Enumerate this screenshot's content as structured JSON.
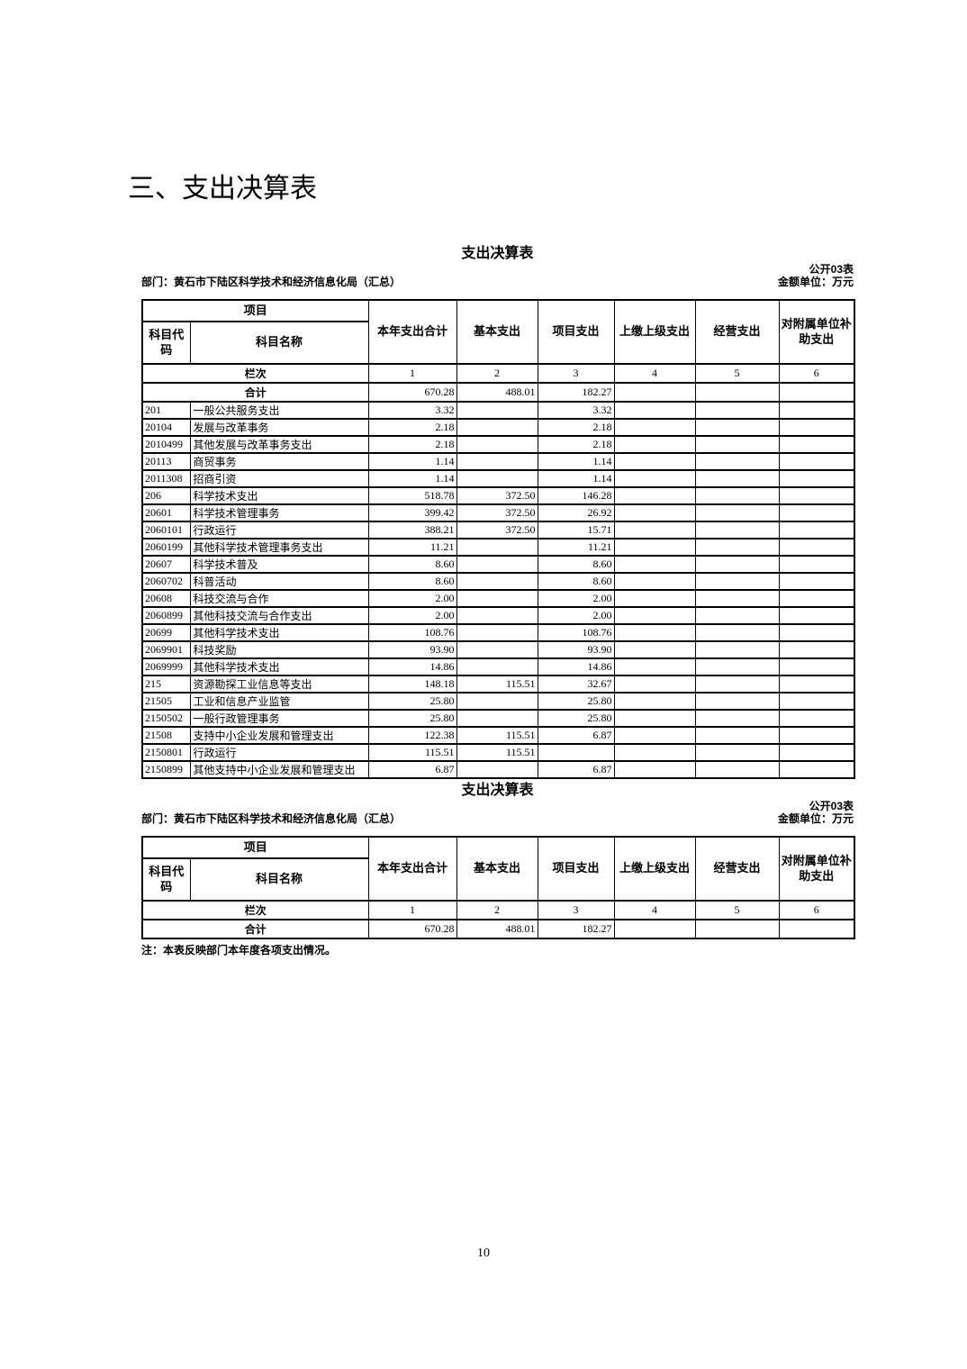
{
  "palette": {
    "text": "#000000",
    "background": "#ffffff",
    "border": "#000000"
  },
  "page": {
    "heading": "三、支出决算表",
    "page_number": "10"
  },
  "tables": [
    {
      "title": "支出决算表",
      "form_code": "公开03表",
      "unit_label": "金额单位：万元",
      "department": "部门：黄石市下陆区科学技术和经济信息化局（汇总）",
      "header": {
        "group_label": "项目",
        "code_label": "科目代码",
        "name_label": "科目名称",
        "amount_columns": [
          "本年支出合计",
          "基本支出",
          "项目支出",
          "上缴上级支出",
          "经营支出",
          "对附属单位补助支出"
        ]
      },
      "column_index_row": {
        "label": "栏次",
        "numbers": [
          "1",
          "2",
          "3",
          "4",
          "5",
          "6"
        ]
      },
      "total_row": {
        "label": "合计",
        "values": [
          "670.28",
          "488.01",
          "182.27",
          "",
          "",
          ""
        ]
      },
      "data_rows": [
        [
          "201",
          "一般公共服务支出",
          "3.32",
          "",
          "3.32",
          "",
          "",
          ""
        ],
        [
          "20104",
          "发展与改革事务",
          "2.18",
          "",
          "2.18",
          "",
          "",
          ""
        ],
        [
          "2010499",
          "其他发展与改革事务支出",
          "2.18",
          "",
          "2.18",
          "",
          "",
          ""
        ],
        [
          "20113",
          "商贸事务",
          "1.14",
          "",
          "1.14",
          "",
          "",
          ""
        ],
        [
          "2011308",
          "招商引资",
          "1.14",
          "",
          "1.14",
          "",
          "",
          ""
        ],
        [
          "206",
          "科学技术支出",
          "518.78",
          "372.50",
          "146.28",
          "",
          "",
          ""
        ],
        [
          "20601",
          "科学技术管理事务",
          "399.42",
          "372.50",
          "26.92",
          "",
          "",
          ""
        ],
        [
          "2060101",
          "行政运行",
          "388.21",
          "372.50",
          "15.71",
          "",
          "",
          ""
        ],
        [
          "2060199",
          "其他科学技术管理事务支出",
          "11.21",
          "",
          "11.21",
          "",
          "",
          ""
        ],
        [
          "20607",
          "科学技术普及",
          "8.60",
          "",
          "8.60",
          "",
          "",
          ""
        ],
        [
          "2060702",
          "科普活动",
          "8.60",
          "",
          "8.60",
          "",
          "",
          ""
        ],
        [
          "20608",
          "科技交流与合作",
          "2.00",
          "",
          "2.00",
          "",
          "",
          ""
        ],
        [
          "2060899",
          "其他科技交流与合作支出",
          "2.00",
          "",
          "2.00",
          "",
          "",
          ""
        ],
        [
          "20699",
          "其他科学技术支出",
          "108.76",
          "",
          "108.76",
          "",
          "",
          ""
        ],
        [
          "2069901",
          "科技奖励",
          "93.90",
          "",
          "93.90",
          "",
          "",
          ""
        ],
        [
          "2069999",
          "其他科学技术支出",
          "14.86",
          "",
          "14.86",
          "",
          "",
          ""
        ],
        [
          "215",
          "资源勘探工业信息等支出",
          "148.18",
          "115.51",
          "32.67",
          "",
          "",
          ""
        ],
        [
          "21505",
          "工业和信息产业监管",
          "25.80",
          "",
          "25.80",
          "",
          "",
          ""
        ],
        [
          "2150502",
          "一般行政管理事务",
          "25.80",
          "",
          "25.80",
          "",
          "",
          ""
        ],
        [
          "21508",
          "支持中小企业发展和管理支出",
          "122.38",
          "115.51",
          "6.87",
          "",
          "",
          ""
        ],
        [
          "2150801",
          "行政运行",
          "115.51",
          "115.51",
          "",
          "",
          "",
          ""
        ],
        [
          "2150899",
          "其他支持中小企业发展和管理支出",
          "6.87",
          "",
          "6.87",
          "",
          "",
          ""
        ]
      ],
      "note": ""
    },
    {
      "title": "支出决算表",
      "form_code": "公开03表",
      "unit_label": "金额单位：万元",
      "department": "部门：黄石市下陆区科学技术和经济信息化局（汇总）",
      "header": {
        "group_label": "项目",
        "code_label": "科目代码",
        "name_label": "科目名称",
        "amount_columns": [
          "本年支出合计",
          "基本支出",
          "项目支出",
          "上缴上级支出",
          "经营支出",
          "对附属单位补助支出"
        ]
      },
      "column_index_row": {
        "label": "栏次",
        "numbers": [
          "1",
          "2",
          "3",
          "4",
          "5",
          "6"
        ]
      },
      "total_row": {
        "label": "合计",
        "values": [
          "670.28",
          "488.01",
          "182.27",
          "",
          "",
          ""
        ]
      },
      "data_rows": [],
      "note": "注：本表反映部门本年度各项支出情况。"
    }
  ]
}
